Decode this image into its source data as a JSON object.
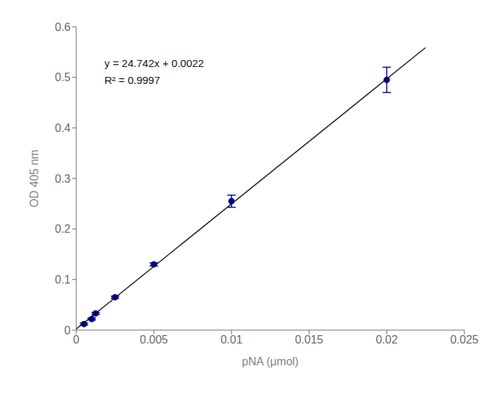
{
  "chart_data": {
    "type": "scatter",
    "xlabel": "pNA (μmol)",
    "ylabel": "OD 405 nm",
    "annotations": [
      "y = 24.742x + 0.0022",
      "R² = 0.9997"
    ],
    "xlim": [
      0,
      0.025
    ],
    "ylim": [
      0,
      0.6
    ],
    "xticks": [
      0,
      0.005,
      0.01,
      0.015,
      0.02,
      0.025
    ],
    "yticks": [
      0,
      0.1,
      0.2,
      0.3,
      0.4,
      0.5,
      0.6
    ],
    "grid": false,
    "series": [
      {
        "type": "scatter",
        "marker": "circle",
        "color": "#00008B",
        "x": [
          0.0005,
          0.001,
          0.00125,
          0.0025,
          0.005,
          0.01,
          0.02
        ],
        "values": [
          0.012,
          0.022,
          0.033,
          0.065,
          0.13,
          0.255,
          0.495
        ],
        "y_err": [
          0.002,
          0.002,
          0.002,
          0.002,
          0.003,
          0.012,
          0.025
        ]
      },
      {
        "type": "line",
        "line_style": "solid",
        "color": "#111111",
        "x": [
          0,
          0.0225
        ],
        "values": [
          0.0022,
          0.558895
        ]
      }
    ]
  }
}
